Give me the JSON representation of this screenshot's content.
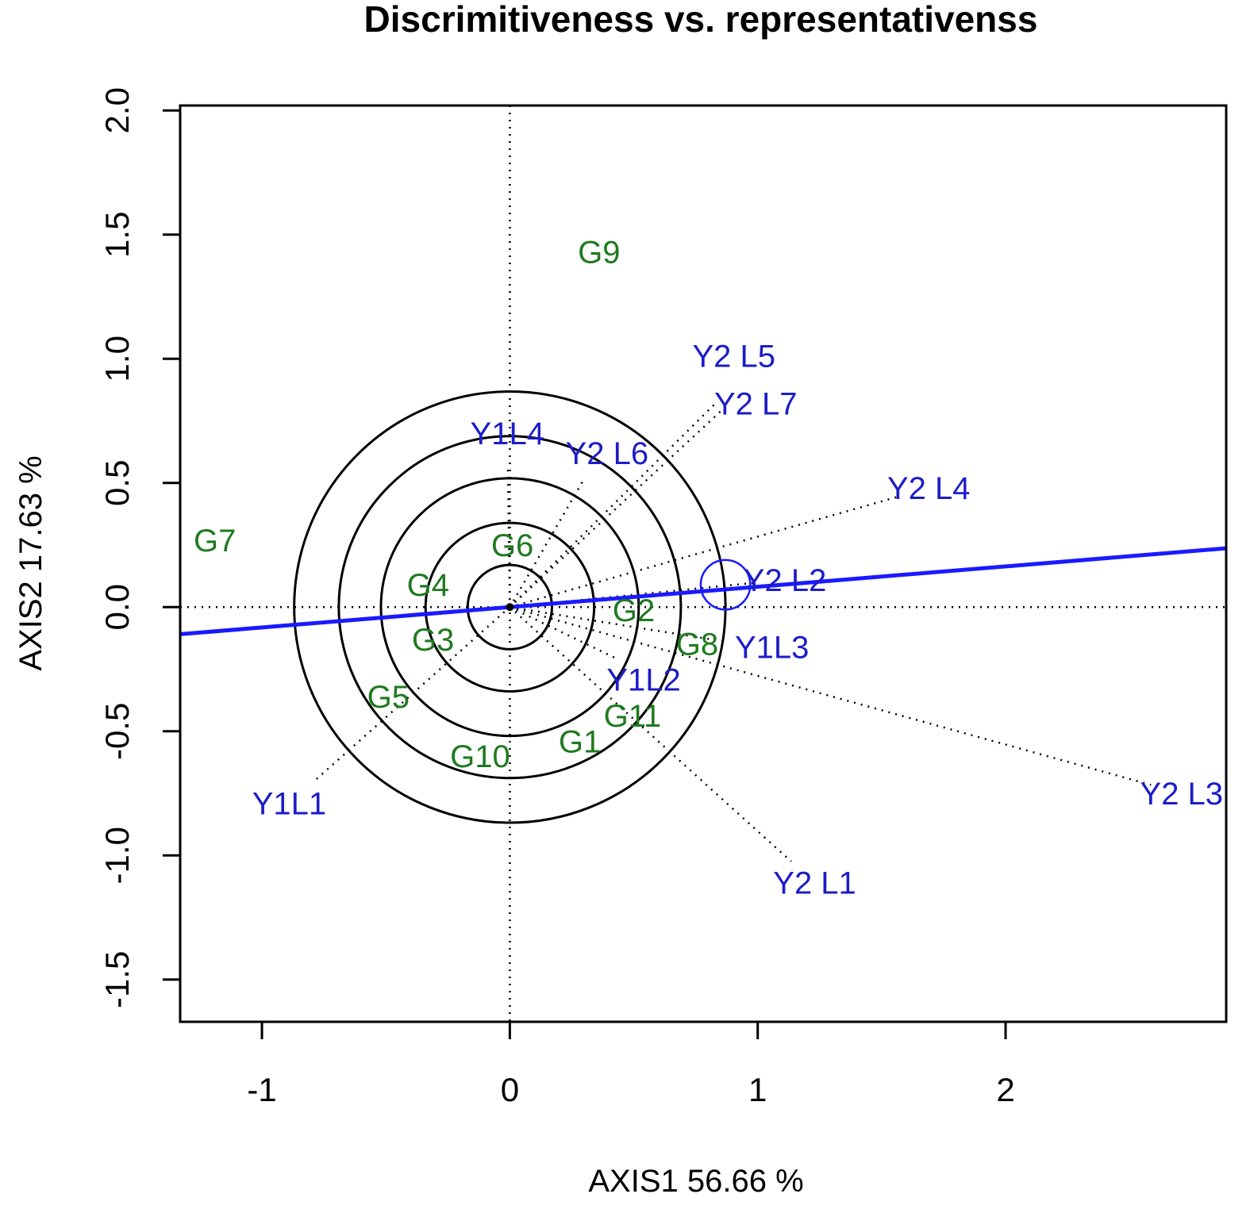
{
  "chart_data": {
    "type": "scatter",
    "title": "Discrimitiveness vs. representativenss",
    "xlabel": "AXIS1 56.66 %",
    "ylabel": "AXIS2 17.63 %",
    "xlim": [
      -1.33,
      2.89
    ],
    "ylim": [
      -1.67,
      2.02
    ],
    "x_ticks": [
      -1,
      0,
      1,
      2
    ],
    "x_tick_labels": [
      "-1",
      "0",
      "1",
      "2"
    ],
    "y_ticks": [
      -1.5,
      -1.0,
      -0.5,
      0.0,
      0.5,
      1.0,
      1.5,
      2.0
    ],
    "y_tick_labels": [
      "-1.5",
      "-1.0",
      "-0.5",
      "0.0",
      "0.5",
      "1.0",
      "1.5",
      "2.0"
    ],
    "grid": false,
    "colors": {
      "genotype": "#1f7a1f",
      "environment": "#1c1cc8",
      "aec_line": "#1a1aff",
      "circles": "#000000"
    },
    "genotypes": [
      {
        "label": "G1",
        "x": 0.34,
        "y": -0.49
      },
      {
        "label": "G2",
        "x": 0.57,
        "y": -0.07
      },
      {
        "label": "G3",
        "x": -0.31,
        "y": -0.13
      },
      {
        "label": "G4",
        "x": -0.33,
        "y": 0.09
      },
      {
        "label": "G5",
        "x": -0.49,
        "y": -0.36
      },
      {
        "label": "G6",
        "x": 0.01,
        "y": 0.25
      },
      {
        "label": "G7",
        "x": -1.19,
        "y": 0.27
      },
      {
        "label": "G8",
        "x": 0.73,
        "y": -0.11
      },
      {
        "label": "G9",
        "x": 0.36,
        "y": 1.43
      },
      {
        "label": "G10",
        "x": -0.12,
        "y": -0.6
      },
      {
        "label": "G11",
        "x": 0.45,
        "y": -0.45
      }
    ],
    "environments": [
      {
        "label": "Y1L1",
        "x": -0.89,
        "y": -0.79
      },
      {
        "label": "Y1L2",
        "x": 0.54,
        "y": -0.26
      },
      {
        "label": "Y1L3",
        "x": 1.0,
        "y": -0.16
      },
      {
        "label": "Y1L4",
        "x": -0.01,
        "y": 0.7
      },
      {
        "label": "Y2 L1",
        "x": 1.23,
        "y": -1.11
      },
      {
        "label": "Y2 L2",
        "x": 1.11,
        "y": 0.11
      },
      {
        "label": "Y2 L3",
        "x": 2.71,
        "y": -0.75
      },
      {
        "label": "Y2 L4",
        "x": 1.69,
        "y": 0.48
      },
      {
        "label": "Y2 L5",
        "x": 0.92,
        "y": 0.91
      },
      {
        "label": "Y2 L6",
        "x": 0.36,
        "y": 0.62
      },
      {
        "label": "Y2 L7",
        "x": 0.96,
        "y": 0.89
      }
    ],
    "concentric_circle_radii": [
      0.17,
      0.34,
      0.52,
      0.69,
      0.87
    ],
    "aec_slope": 0.082,
    "average_environment": {
      "x": 0.87,
      "y": 0.09,
      "radius": 0.1
    }
  }
}
